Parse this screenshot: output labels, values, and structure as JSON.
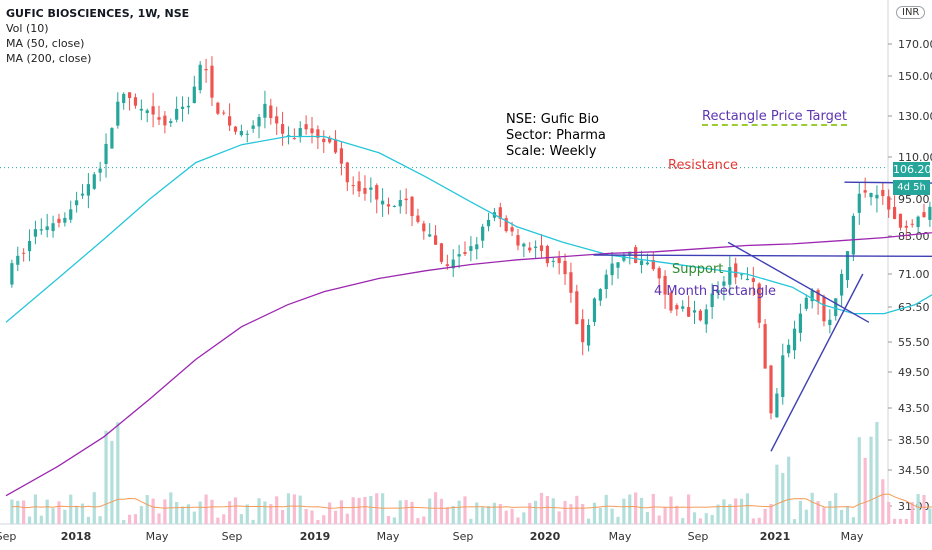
{
  "legend": {
    "title": "GUFIC BIOSCIENCES, 1W, NSE",
    "vol": "Vol (10)",
    "ma50": "MA (50, close)",
    "ma200": "MA (200, close)"
  },
  "currency": "INR",
  "info_lines": [
    "NSE: Gufic Bio",
    "Sector: Pharma",
    "Scale: Weekly"
  ],
  "annotations": {
    "target": "Rectangle Price Target",
    "resistance": "Resistance",
    "support": "Support",
    "rectangle": "4 Month Rectangle"
  },
  "price_label": "106.20",
  "time_label": "4d 5h",
  "colors": {
    "up": "#26a69a",
    "down": "#ef5350",
    "ma50": "#26c6da",
    "ma200": "#9c27b0",
    "vol_up": "#b2dfdb",
    "vol_down": "#f8bbd0",
    "vol_ma": "#f39c5a",
    "trend": "#3f3fb5",
    "resistance": "#e53935",
    "support": "#2e8b2e",
    "target": "#5e35b1"
  },
  "chart_data": {
    "type": "candlestick",
    "y_ticks": [
      "170.00",
      "150.00",
      "130.00",
      "110.00",
      "95.00",
      "83.00",
      "71.00",
      "63.50",
      "55.50",
      "49.50",
      "43.50",
      "38.50",
      "34.50",
      "31.00"
    ],
    "x_ticks": [
      "Sep",
      "2018",
      "May",
      "Sep",
      "2019",
      "May",
      "Sep",
      "2020",
      "May",
      "Sep",
      "2021",
      "May"
    ],
    "last_price": 106.2,
    "series": [
      {
        "name": "MA (50, close)",
        "points": [
          [
            2017.68,
            60
          ],
          [
            2017.85,
            70
          ],
          [
            2018.0,
            82
          ],
          [
            2018.15,
            95
          ],
          [
            2018.3,
            108
          ],
          [
            2018.45,
            116
          ],
          [
            2018.6,
            120
          ],
          [
            2018.72,
            120
          ],
          [
            2018.9,
            112
          ],
          [
            2019.05,
            103
          ],
          [
            2019.2,
            94
          ],
          [
            2019.35,
            86
          ],
          [
            2019.5,
            81
          ],
          [
            2019.65,
            77
          ],
          [
            2019.8,
            75
          ],
          [
            2019.95,
            73
          ],
          [
            2020.1,
            71
          ],
          [
            2020.25,
            68
          ],
          [
            2020.35,
            64
          ],
          [
            2020.45,
            62
          ],
          [
            2020.55,
            62
          ],
          [
            2020.65,
            64
          ],
          [
            2020.75,
            68
          ],
          [
            2020.85,
            72
          ]
        ]
      },
      {
        "name": "MA (200, close)",
        "points": [
          [
            2017.68,
            32
          ],
          [
            2017.85,
            35
          ],
          [
            2018.0,
            39
          ],
          [
            2018.15,
            45
          ],
          [
            2018.3,
            52
          ],
          [
            2018.45,
            59
          ],
          [
            2018.6,
            64
          ],
          [
            2018.72,
            67
          ],
          [
            2018.9,
            70
          ],
          [
            2019.05,
            72
          ],
          [
            2019.2,
            74
          ],
          [
            2019.35,
            75.5
          ],
          [
            2019.5,
            76.5
          ],
          [
            2019.65,
            77.5
          ],
          [
            2019.8,
            78
          ],
          [
            2019.95,
            79
          ],
          [
            2020.1,
            80
          ],
          [
            2020.25,
            80.5
          ],
          [
            2020.4,
            81.5
          ],
          [
            2020.55,
            82.5
          ],
          [
            2020.7,
            84
          ],
          [
            2020.85,
            85
          ]
        ]
      }
    ],
    "trendlines": [
      {
        "name": "Resistance",
        "from": [
          2020.42,
          101
        ],
        "to": [
          2020.9,
          100.5
        ]
      },
      {
        "name": "Support",
        "from": [
          2019.6,
          77
        ],
        "to": [
          2020.9,
          76.5
        ]
      },
      {
        "name": "Triangle upper",
        "from": [
          2020.04,
          81
        ],
        "to": [
          2020.5,
          60
        ]
      },
      {
        "name": "Triangle lower",
        "from": [
          2020.18,
          37
        ],
        "to": [
          2020.48,
          71
        ]
      }
    ]
  }
}
